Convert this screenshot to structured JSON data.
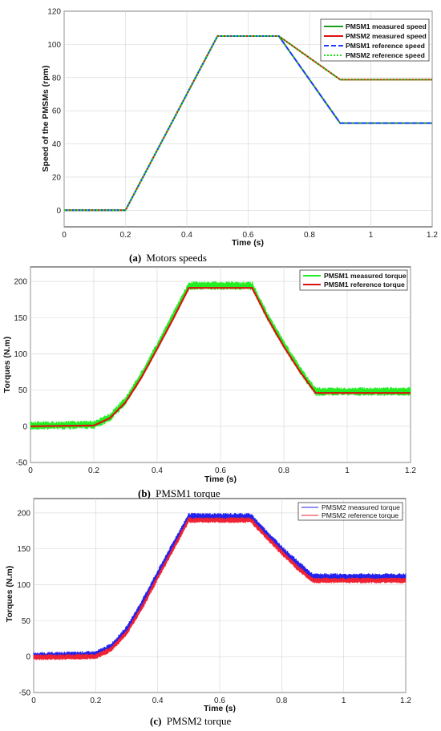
{
  "colors": {
    "pmsm1_measured_speed": "#1a9e1a",
    "pmsm2_measured_speed": "#e01010",
    "pmsm1_reference_speed": "#1f3cff",
    "pmsm2_reference_speed": "#18e018",
    "torque1_measured": "#22ee22",
    "torque1_reference": "#dd1111",
    "torque2_measured": "#2222ee",
    "torque2_reference": "#ee2233"
  },
  "chart_data": [
    {
      "type": "line",
      "caption_tag": "(a)",
      "caption_text": "Motors speeds",
      "xlabel": "Time (s)",
      "ylabel": "Speed of the PMSMs (rpm)",
      "xlim": [
        0,
        1.2
      ],
      "ylim": [
        -10,
        120
      ],
      "xticks": [
        "0",
        "0.2",
        "0.4",
        "0.6",
        "0.8",
        "1",
        "1.2"
      ],
      "yticks": [
        "0",
        "20",
        "40",
        "60",
        "80",
        "100",
        "120"
      ],
      "grid": true,
      "legend_position": "top-right",
      "series": [
        {
          "name": "PMSM1 measured speed",
          "x": [
            0,
            0.2,
            0.5,
            0.7,
            0.9,
            1.2
          ],
          "y": [
            0,
            0,
            105,
            105,
            52.5,
            52.5
          ]
        },
        {
          "name": "PMSM2 measured speed",
          "x": [
            0,
            0.2,
            0.5,
            0.7,
            0.9,
            1.2
          ],
          "y": [
            0,
            0,
            105,
            105,
            78.75,
            78.75
          ]
        },
        {
          "name": "PMSM1 reference speed",
          "x": [
            0,
            0.2,
            0.5,
            0.7,
            0.9,
            1.2
          ],
          "y": [
            0,
            0,
            105,
            105,
            52.5,
            52.5
          ]
        },
        {
          "name": "PMSM2 reference speed",
          "x": [
            0,
            0.2,
            0.5,
            0.7,
            0.9,
            1.2
          ],
          "y": [
            0,
            0,
            105,
            105,
            78.75,
            78.75
          ]
        }
      ]
    },
    {
      "type": "line",
      "caption_tag": "(b)",
      "caption_text": "PMSM1 torque",
      "xlabel": "Time (s)",
      "ylabel": "Torques (N.m)",
      "xlim": [
        0,
        1.2
      ],
      "ylim": [
        -50,
        220
      ],
      "xticks": [
        "0",
        "0.2",
        "0.4",
        "0.6",
        "0.8",
        "1",
        "1.2"
      ],
      "yticks": [
        "-50",
        "0",
        "50",
        "100",
        "150",
        "200"
      ],
      "grid": true,
      "legend_position": "top-right",
      "series": [
        {
          "name": "PMSM1 measured torque",
          "x": [
            0,
            0.2,
            0.25,
            0.3,
            0.35,
            0.4,
            0.45,
            0.5,
            0.7,
            0.75,
            0.8,
            0.85,
            0.9,
            1.2
          ],
          "y": [
            1,
            2,
            12,
            35,
            70,
            110,
            152,
            194,
            194,
            150,
            113,
            78,
            48,
            48
          ],
          "ripple": 6
        },
        {
          "name": "PMSM1 reference torque",
          "x": [
            0,
            0.2,
            0.25,
            0.3,
            0.35,
            0.4,
            0.45,
            0.5,
            0.7,
            0.75,
            0.8,
            0.85,
            0.9,
            1.2
          ],
          "y": [
            0,
            1,
            11,
            33,
            67,
            107,
            148,
            191,
            191,
            148,
            110,
            76,
            46,
            46
          ]
        }
      ]
    },
    {
      "type": "line",
      "caption_tag": "(c)",
      "caption_text": "PMSM2 torque",
      "xlabel": "Time (s)",
      "ylabel": "Torques (N.m)",
      "xlim": [
        0,
        1.2
      ],
      "ylim": [
        -50,
        220
      ],
      "xticks": [
        "0",
        "0.2",
        "0.4",
        "0.6",
        "0.8",
        "1",
        "1.2"
      ],
      "yticks": [
        "-50",
        "0",
        "50",
        "100",
        "150",
        "200"
      ],
      "grid": true,
      "legend_position": "top-right",
      "series": [
        {
          "name": "PMSM2 measured torque",
          "x": [
            0,
            0.2,
            0.25,
            0.3,
            0.35,
            0.4,
            0.45,
            0.5,
            0.7,
            0.75,
            0.8,
            0.85,
            0.9,
            1.2
          ],
          "y": [
            1,
            3,
            14,
            38,
            75,
            116,
            156,
            195,
            195,
            172,
            150,
            130,
            111,
            111
          ],
          "ripple": 5
        },
        {
          "name": "PMSM2 reference torque",
          "x": [
            0,
            0.2,
            0.25,
            0.3,
            0.35,
            0.4,
            0.45,
            0.5,
            0.7,
            0.75,
            0.8,
            0.85,
            0.9,
            1.2
          ],
          "y": [
            -1,
            0,
            10,
            33,
            69,
            110,
            150,
            190,
            190,
            167,
            145,
            124,
            106,
            106
          ],
          "ripple": 4
        }
      ]
    }
  ]
}
